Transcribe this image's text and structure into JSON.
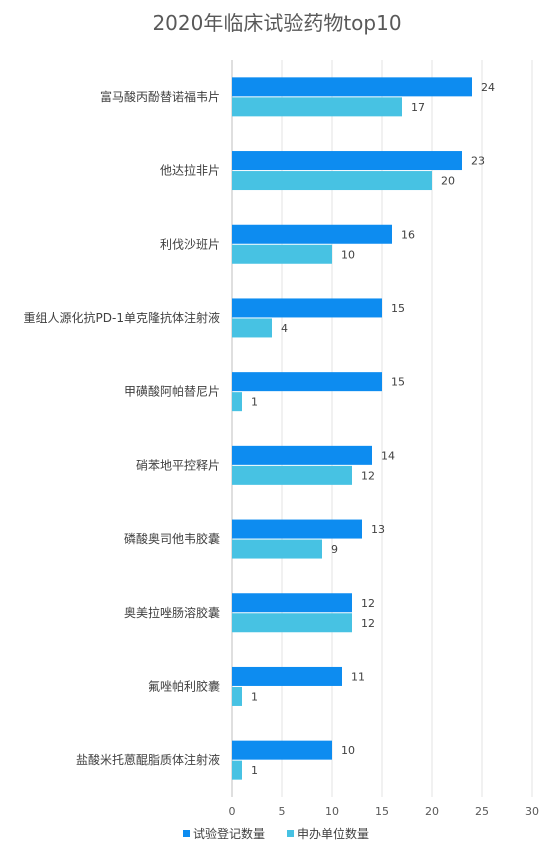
{
  "chart_data": {
    "type": "bar",
    "orientation": "horizontal",
    "title": "2020年临床试验药物top10",
    "categories": [
      "富马酸丙酚替诺福韦片",
      "他达拉非片",
      "利伐沙班片",
      "重组人源化抗PD-1单克隆抗体注射液",
      "甲磺酸阿帕替尼片",
      "硝苯地平控释片",
      "磷酸奥司他韦胶囊",
      "奥美拉唑肠溶胶囊",
      "氟唑帕利胶囊",
      "盐酸米托蒽醌脂质体注射液"
    ],
    "series": [
      {
        "name": "试验登记数量",
        "color": "#0d8cf0",
        "values": [
          24,
          23,
          16,
          15,
          15,
          14,
          13,
          12,
          11,
          10
        ]
      },
      {
        "name": "申办单位数量",
        "color": "#47c2e3",
        "values": [
          17,
          20,
          10,
          4,
          1,
          12,
          9,
          12,
          1,
          1
        ]
      }
    ],
    "xlim": [
      0,
      30
    ],
    "xticks": [
      0,
      5,
      10,
      15,
      20,
      25,
      30
    ],
    "grid": true,
    "legend": "bottom"
  }
}
